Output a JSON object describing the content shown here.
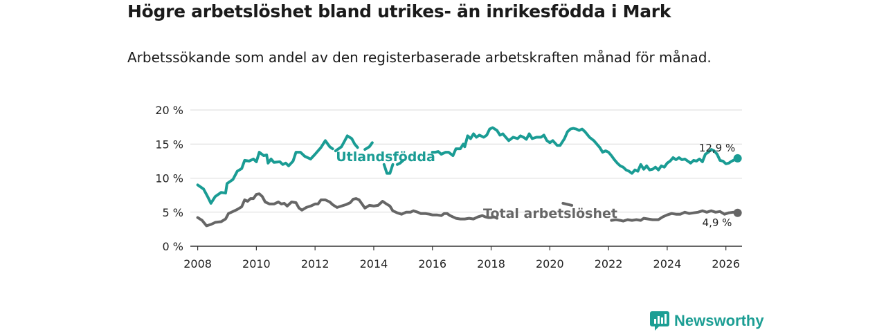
{
  "title": "Högre arbetslöshet bland utrikes- än inrikesfödda i Mark",
  "subtitle": "Arbetssökande som andel av den registerbaserade arbetskraften månad för månad.",
  "brand": {
    "name": "Newsworthy",
    "icon": "newsworthy-logo-icon"
  },
  "colors": {
    "foreign": "#1a9c94",
    "total": "#666666",
    "grid": "#d9d9d9",
    "axis": "#333333"
  },
  "chart_data": {
    "type": "line",
    "title": "Högre arbetslöshet bland utrikes- än inrikesfödda i Mark",
    "subtitle": "Arbetssökande som andel av den registerbaserade arbetskraften månad för månad.",
    "xlabel": "",
    "ylabel": "",
    "xlim": [
      2007.75,
      2026.55
    ],
    "ylim": [
      0,
      20
    ],
    "y_ticks": [
      0,
      5,
      10,
      15,
      20
    ],
    "y_tick_labels": [
      "0 %",
      "5 %",
      "10 %",
      "15 %",
      "20 %"
    ],
    "x_ticks": [
      2008,
      2010,
      2012,
      2014,
      2016,
      2018,
      2020,
      2022,
      2024,
      2026
    ],
    "x_tick_labels": [
      "2008",
      "2010",
      "2012",
      "2014",
      "2016",
      "2018",
      "2020",
      "2022",
      "2024",
      "2026"
    ],
    "grid": true,
    "series": [
      {
        "name": "Utlandsfödda",
        "color": "#1a9c94",
        "end_label": "12,9 %",
        "points": [
          [
            2008.0,
            9.0
          ],
          [
            2008.2,
            8.4
          ],
          [
            2008.35,
            7.2
          ],
          [
            2008.45,
            6.3
          ],
          [
            2008.6,
            7.3
          ],
          [
            2008.8,
            7.9
          ],
          [
            2008.95,
            7.8
          ],
          [
            2009.0,
            9.2
          ],
          [
            2009.2,
            9.8
          ],
          [
            2009.35,
            11.0
          ],
          [
            2009.5,
            11.4
          ],
          [
            2009.6,
            12.6
          ],
          [
            2009.75,
            12.5
          ],
          [
            2009.9,
            12.8
          ],
          [
            2010.0,
            12.4
          ],
          [
            2010.1,
            13.8
          ],
          [
            2010.25,
            13.3
          ],
          [
            2010.35,
            13.4
          ],
          [
            2010.4,
            12.2
          ],
          [
            2010.5,
            12.8
          ],
          [
            2010.6,
            12.3
          ],
          [
            2010.8,
            12.4
          ],
          [
            2010.9,
            12.0
          ],
          [
            2011.0,
            12.2
          ],
          [
            2011.1,
            11.8
          ],
          [
            2011.25,
            12.5
          ],
          [
            2011.35,
            13.8
          ],
          [
            2011.5,
            13.8
          ],
          [
            2011.65,
            13.2
          ],
          [
            2011.85,
            12.8
          ],
          [
            2012.0,
            13.5
          ],
          [
            2012.2,
            14.5
          ],
          [
            2012.35,
            15.5
          ],
          [
            2012.5,
            14.6
          ],
          [
            2012.6,
            14.3
          ],
          null,
          [
            2012.7,
            14.0
          ],
          [
            2012.9,
            14.6
          ],
          [
            2013.0,
            15.4
          ],
          [
            2013.1,
            16.2
          ],
          [
            2013.25,
            15.8
          ],
          [
            2013.35,
            15.0
          ],
          [
            2013.45,
            14.5
          ],
          null,
          [
            2013.7,
            14.2
          ],
          [
            2013.85,
            14.6
          ],
          [
            2013.95,
            15.2
          ],
          null,
          [
            2014.35,
            12.0
          ],
          [
            2014.45,
            10.7
          ],
          [
            2014.55,
            10.7
          ],
          [
            2014.65,
            12.0
          ],
          null,
          [
            2014.8,
            12.0
          ],
          [
            2014.9,
            12.2
          ],
          [
            2015.0,
            12.6
          ],
          null,
          [
            2016.0,
            13.8
          ],
          [
            2016.1,
            13.8
          ],
          [
            2016.2,
            13.9
          ],
          [
            2016.3,
            13.5
          ],
          [
            2016.45,
            13.8
          ],
          [
            2016.55,
            13.8
          ],
          [
            2016.7,
            13.3
          ],
          [
            2016.8,
            14.3
          ],
          [
            2016.95,
            14.3
          ],
          [
            2017.05,
            15.0
          ],
          [
            2017.1,
            14.6
          ],
          [
            2017.2,
            16.2
          ],
          [
            2017.3,
            15.8
          ],
          [
            2017.4,
            16.5
          ],
          [
            2017.5,
            16.0
          ],
          [
            2017.6,
            16.3
          ],
          [
            2017.75,
            16.0
          ],
          [
            2017.85,
            16.3
          ],
          [
            2017.95,
            17.2
          ],
          [
            2018.05,
            17.4
          ],
          [
            2018.2,
            17.0
          ],
          [
            2018.3,
            16.3
          ],
          [
            2018.4,
            16.5
          ],
          [
            2018.5,
            16.0
          ],
          [
            2018.6,
            15.5
          ],
          [
            2018.75,
            16.0
          ],
          [
            2018.9,
            15.8
          ],
          [
            2019.0,
            16.2
          ],
          [
            2019.1,
            16.0
          ],
          [
            2019.2,
            15.7
          ],
          [
            2019.3,
            16.5
          ],
          [
            2019.4,
            15.8
          ],
          [
            2019.55,
            16.0
          ],
          [
            2019.7,
            16.0
          ],
          [
            2019.8,
            16.3
          ],
          [
            2019.9,
            15.5
          ],
          [
            2020.0,
            15.2
          ],
          [
            2020.1,
            15.5
          ],
          [
            2020.25,
            14.8
          ],
          [
            2020.35,
            14.8
          ],
          [
            2020.5,
            15.8
          ],
          [
            2020.6,
            16.8
          ],
          [
            2020.7,
            17.2
          ],
          [
            2020.8,
            17.3
          ],
          [
            2020.9,
            17.2
          ],
          [
            2021.0,
            17.0
          ],
          [
            2021.1,
            17.2
          ],
          [
            2021.2,
            16.8
          ],
          [
            2021.35,
            16.0
          ],
          [
            2021.5,
            15.5
          ],
          [
            2021.6,
            15.0
          ],
          [
            2021.7,
            14.5
          ],
          [
            2021.8,
            13.8
          ],
          [
            2021.9,
            14.0
          ],
          [
            2022.0,
            13.8
          ],
          [
            2022.1,
            13.3
          ],
          [
            2022.2,
            12.7
          ],
          [
            2022.3,
            12.2
          ],
          [
            2022.4,
            11.8
          ],
          [
            2022.5,
            11.6
          ],
          [
            2022.6,
            11.2
          ],
          [
            2022.7,
            11.0
          ],
          [
            2022.8,
            10.7
          ],
          [
            2022.9,
            11.2
          ],
          [
            2023.0,
            11.0
          ],
          [
            2023.1,
            12.0
          ],
          [
            2023.2,
            11.3
          ],
          [
            2023.3,
            11.8
          ],
          [
            2023.4,
            11.2
          ],
          [
            2023.5,
            11.3
          ],
          [
            2023.6,
            11.6
          ],
          [
            2023.7,
            11.2
          ],
          [
            2023.8,
            11.8
          ],
          [
            2023.9,
            11.6
          ],
          [
            2024.0,
            12.2
          ],
          [
            2024.1,
            12.5
          ],
          [
            2024.2,
            13.0
          ],
          [
            2024.3,
            12.7
          ],
          [
            2024.4,
            13.0
          ],
          [
            2024.5,
            12.7
          ],
          [
            2024.6,
            12.8
          ],
          [
            2024.7,
            12.5
          ],
          [
            2024.8,
            12.2
          ],
          [
            2024.9,
            12.6
          ],
          [
            2025.0,
            12.5
          ],
          [
            2025.1,
            12.8
          ],
          [
            2025.2,
            12.4
          ],
          [
            2025.3,
            13.5
          ],
          [
            2025.4,
            13.8
          ],
          [
            2025.5,
            14.2
          ],
          [
            2025.6,
            14.0
          ],
          [
            2025.7,
            13.5
          ],
          [
            2025.8,
            12.6
          ],
          [
            2025.9,
            12.5
          ],
          [
            2026.0,
            12.1
          ],
          [
            2026.1,
            12.2
          ],
          [
            2026.2,
            12.5
          ],
          [
            2026.3,
            12.7
          ],
          [
            2026.4,
            12.9
          ]
        ]
      },
      {
        "name": "Total arbetslöshet",
        "color": "#666666",
        "end_label": "4,9 %",
        "points": [
          [
            2008.0,
            4.2
          ],
          [
            2008.15,
            3.8
          ],
          [
            2008.3,
            3.0
          ],
          [
            2008.45,
            3.2
          ],
          [
            2008.6,
            3.5
          ],
          [
            2008.8,
            3.6
          ],
          [
            2008.95,
            4.0
          ],
          [
            2009.05,
            4.8
          ],
          [
            2009.2,
            5.1
          ],
          [
            2009.35,
            5.4
          ],
          [
            2009.5,
            5.8
          ],
          [
            2009.6,
            6.8
          ],
          [
            2009.7,
            6.6
          ],
          [
            2009.8,
            7.0
          ],
          [
            2009.9,
            7.0
          ],
          [
            2010.0,
            7.6
          ],
          [
            2010.1,
            7.7
          ],
          [
            2010.2,
            7.3
          ],
          [
            2010.3,
            6.5
          ],
          [
            2010.45,
            6.2
          ],
          [
            2010.6,
            6.2
          ],
          [
            2010.75,
            6.5
          ],
          [
            2010.85,
            6.2
          ],
          [
            2010.95,
            6.3
          ],
          [
            2011.05,
            5.9
          ],
          [
            2011.2,
            6.5
          ],
          [
            2011.35,
            6.4
          ],
          [
            2011.45,
            5.6
          ],
          [
            2011.55,
            5.3
          ],
          [
            2011.7,
            5.7
          ],
          [
            2011.85,
            5.9
          ],
          [
            2012.0,
            6.2
          ],
          [
            2012.1,
            6.2
          ],
          [
            2012.2,
            6.8
          ],
          [
            2012.35,
            6.8
          ],
          [
            2012.5,
            6.5
          ],
          [
            2012.6,
            6.1
          ],
          [
            2012.75,
            5.7
          ],
          [
            2012.9,
            5.9
          ],
          [
            2013.05,
            6.1
          ],
          [
            2013.2,
            6.4
          ],
          [
            2013.3,
            6.9
          ],
          [
            2013.4,
            7.0
          ],
          [
            2013.5,
            6.8
          ],
          [
            2013.6,
            6.2
          ],
          [
            2013.7,
            5.6
          ],
          [
            2013.85,
            6.0
          ],
          [
            2014.0,
            5.9
          ],
          [
            2014.15,
            6.0
          ],
          [
            2014.3,
            6.6
          ],
          [
            2014.4,
            6.3
          ],
          [
            2014.55,
            5.9
          ],
          [
            2014.65,
            5.2
          ],
          [
            2014.8,
            4.9
          ],
          [
            2014.95,
            4.7
          ],
          [
            2015.1,
            5.0
          ],
          [
            2015.25,
            5.0
          ],
          [
            2015.35,
            5.2
          ],
          [
            2015.5,
            5.0
          ],
          [
            2015.6,
            4.8
          ],
          [
            2015.75,
            4.8
          ],
          [
            2015.9,
            4.7
          ],
          [
            2016.0,
            4.6
          ],
          [
            2016.15,
            4.6
          ],
          [
            2016.3,
            4.5
          ],
          [
            2016.4,
            4.8
          ],
          [
            2016.5,
            4.8
          ],
          [
            2016.6,
            4.5
          ],
          [
            2016.8,
            4.1
          ],
          [
            2016.95,
            4.0
          ],
          [
            2017.1,
            4.0
          ],
          [
            2017.25,
            4.1
          ],
          [
            2017.4,
            4.0
          ],
          [
            2017.55,
            4.3
          ],
          [
            2017.7,
            4.5
          ],
          [
            2017.8,
            4.3
          ],
          [
            2017.9,
            4.2
          ],
          [
            2018.0,
            4.2
          ],
          [
            2018.1,
            4.3
          ],
          [
            2018.2,
            4.1
          ],
          null,
          [
            2020.45,
            6.3
          ],
          [
            2020.55,
            6.2
          ],
          [
            2020.65,
            6.1
          ],
          [
            2020.75,
            6.0
          ],
          null,
          [
            2022.1,
            3.8
          ],
          [
            2022.25,
            3.9
          ],
          [
            2022.4,
            3.8
          ],
          [
            2022.5,
            3.7
          ],
          [
            2022.65,
            3.9
          ],
          [
            2022.8,
            3.8
          ],
          [
            2022.95,
            3.9
          ],
          [
            2023.1,
            3.8
          ],
          [
            2023.2,
            4.1
          ],
          [
            2023.35,
            4.0
          ],
          [
            2023.5,
            3.9
          ],
          [
            2023.7,
            3.9
          ],
          [
            2023.85,
            4.3
          ],
          [
            2024.0,
            4.6
          ],
          [
            2024.15,
            4.8
          ],
          [
            2024.3,
            4.7
          ],
          [
            2024.45,
            4.7
          ],
          [
            2024.6,
            5.0
          ],
          [
            2024.75,
            4.8
          ],
          [
            2024.9,
            4.9
          ],
          [
            2025.05,
            5.0
          ],
          [
            2025.2,
            5.2
          ],
          [
            2025.35,
            5.0
          ],
          [
            2025.5,
            5.2
          ],
          [
            2025.65,
            5.0
          ],
          [
            2025.8,
            5.1
          ],
          [
            2025.95,
            4.7
          ],
          [
            2026.1,
            4.9
          ],
          [
            2026.25,
            5.0
          ],
          [
            2026.4,
            4.9
          ]
        ]
      }
    ]
  }
}
